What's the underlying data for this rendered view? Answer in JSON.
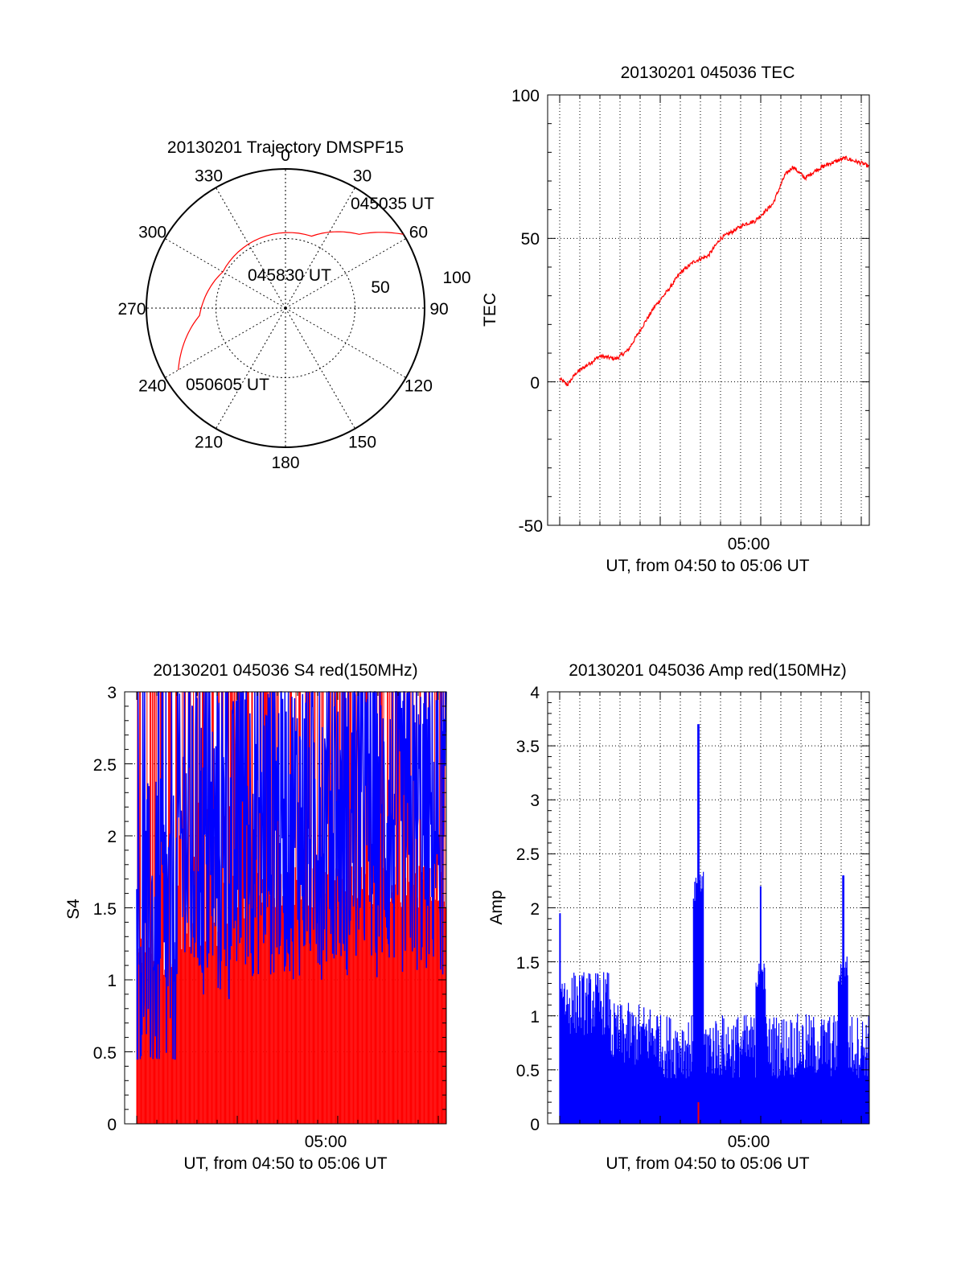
{
  "chart_data": [
    {
      "type": "polar-trajectory",
      "title": "20130201 Trajectory DMSPF15",
      "angle_labels": [
        "0",
        "30",
        "60",
        "90",
        "120",
        "150",
        "180",
        "210",
        "240",
        "270",
        "300",
        "330"
      ],
      "radius_labels": [
        "50",
        "100"
      ],
      "rlim": [
        0,
        100
      ],
      "grid": true,
      "trajectory": {
        "color": "#ff0000",
        "points": [
          {
            "azimuth": 58,
            "radius": 100
          },
          {
            "azimuth": 45,
            "radius": 75
          },
          {
            "azimuth": 20,
            "radius": 55
          },
          {
            "azimuth": 300,
            "radius": 52
          },
          {
            "azimuth": 265,
            "radius": 62
          },
          {
            "azimuth": 240,
            "radius": 89
          }
        ]
      },
      "annotations": [
        "045035 UT",
        "045830 UT",
        "050605 UT"
      ]
    },
    {
      "type": "line",
      "title": "20130201 045036 TEC",
      "ylabel": "TEC",
      "xlabel": "UT, from 04:50 to 05:06 UT",
      "x_tick_labels": [
        "05:00"
      ],
      "y_tick_labels": [
        "100",
        "50",
        "0",
        "-50"
      ],
      "xlim": [
        -10.6,
        5.4
      ],
      "ylim": [
        -50,
        100
      ],
      "grid": true,
      "series": [
        {
          "color": "#ff0000",
          "x": [
            -10.0,
            -9.6,
            -9.2,
            -8.6,
            -8.0,
            -7.2,
            -6.6,
            -6.0,
            -5.3,
            -4.6,
            -4.0,
            -3.3,
            -2.6,
            -2.0,
            -1.5,
            -0.8,
            -0.3,
            0.6,
            1.2,
            1.6,
            2.2,
            2.8,
            3.4,
            4.2,
            5.1,
            5.4
          ],
          "y": [
            1,
            -1,
            3,
            6,
            9,
            8,
            11,
            18,
            26,
            32,
            38,
            42,
            44,
            50,
            52,
            55,
            56,
            62,
            72,
            75,
            71,
            74,
            76,
            78,
            76,
            75
          ]
        }
      ]
    },
    {
      "type": "bar",
      "title": "20130201 045036 S4 red(150MHz)",
      "ylabel": "S4",
      "xlabel": "UT, from 04:50 to 05:06 UT",
      "x_tick_labels": [
        "05:00"
      ],
      "y_tick_labels": [
        "3",
        "2.5",
        "2",
        "1.5",
        "1",
        "0.5",
        "0"
      ],
      "xlim": [
        -10.6,
        5.4
      ],
      "ylim": [
        0,
        3
      ],
      "grid": true,
      "series_colors": [
        "#ff0000",
        "#0000ff"
      ]
    },
    {
      "type": "bar",
      "title": "20130201 045036 Amp red(150MHz)",
      "ylabel": "Amp",
      "xlabel": "UT, from 04:50 to 05:06 UT",
      "x_tick_labels": [
        "05:00"
      ],
      "y_tick_labels": [
        "4",
        "3.5",
        "3",
        "2.5",
        "2",
        "1.5",
        "1",
        "0.5",
        "0"
      ],
      "xlim": [
        -10.6,
        5.4
      ],
      "ylim": [
        0,
        4
      ],
      "grid": true,
      "series_colors": [
        "#0000ff",
        "#ff0000"
      ],
      "peaks": [
        {
          "x": -3.1,
          "value": 3.7
        },
        {
          "x": 0.0,
          "value": 2.2
        },
        {
          "x": 4.1,
          "value": 2.3
        },
        {
          "x": -10.0,
          "value": 1.95
        }
      ]
    }
  ]
}
